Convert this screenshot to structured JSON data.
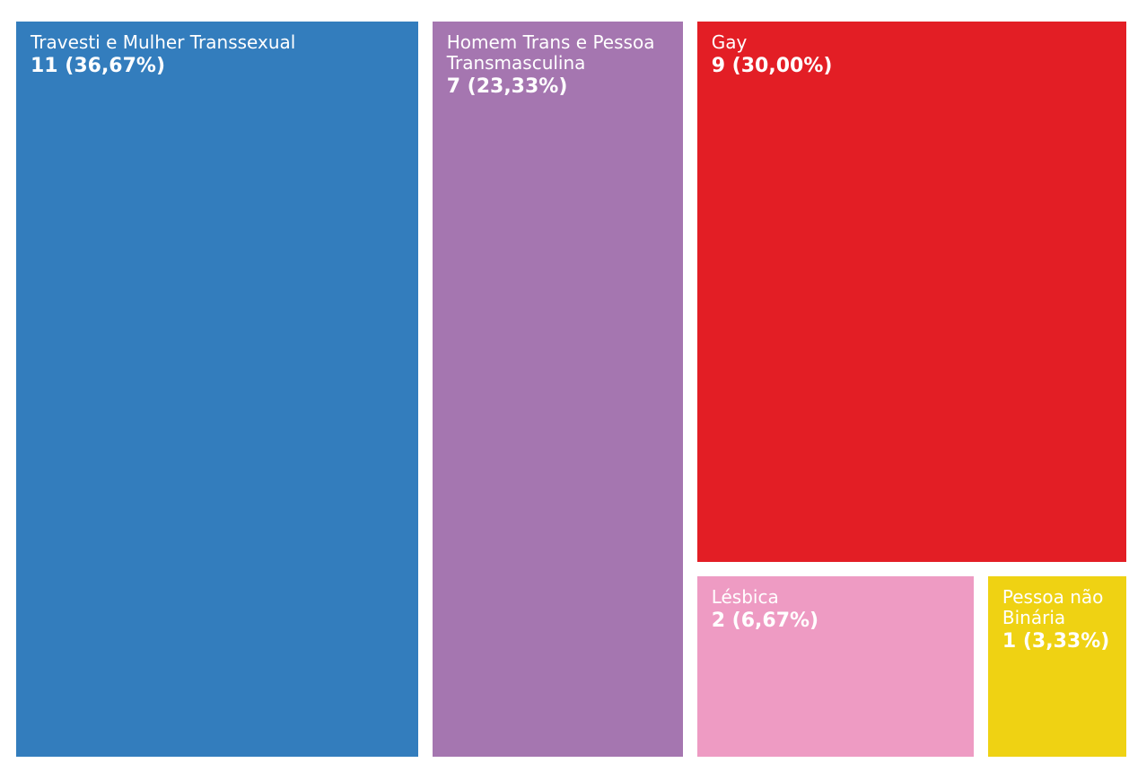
{
  "chart_data": {
    "type": "treemap",
    "categories": [
      "Travesti e Mulher Transsexual",
      "Homem Trans e Pessoa Transmasculina",
      "Gay",
      "Lésbica",
      "Pessoa não Binária"
    ],
    "values": [
      11,
      7,
      9,
      2,
      1
    ],
    "value_labels": [
      "11 (36,67%)",
      "7 (23,33%)",
      "9 (30,00%)",
      "2 (6,67%)",
      "1 (3,33%)"
    ],
    "colors": [
      "#337dbd",
      "#a576b0",
      "#e31e25",
      "#ee9bc3",
      "#efd213"
    ]
  }
}
